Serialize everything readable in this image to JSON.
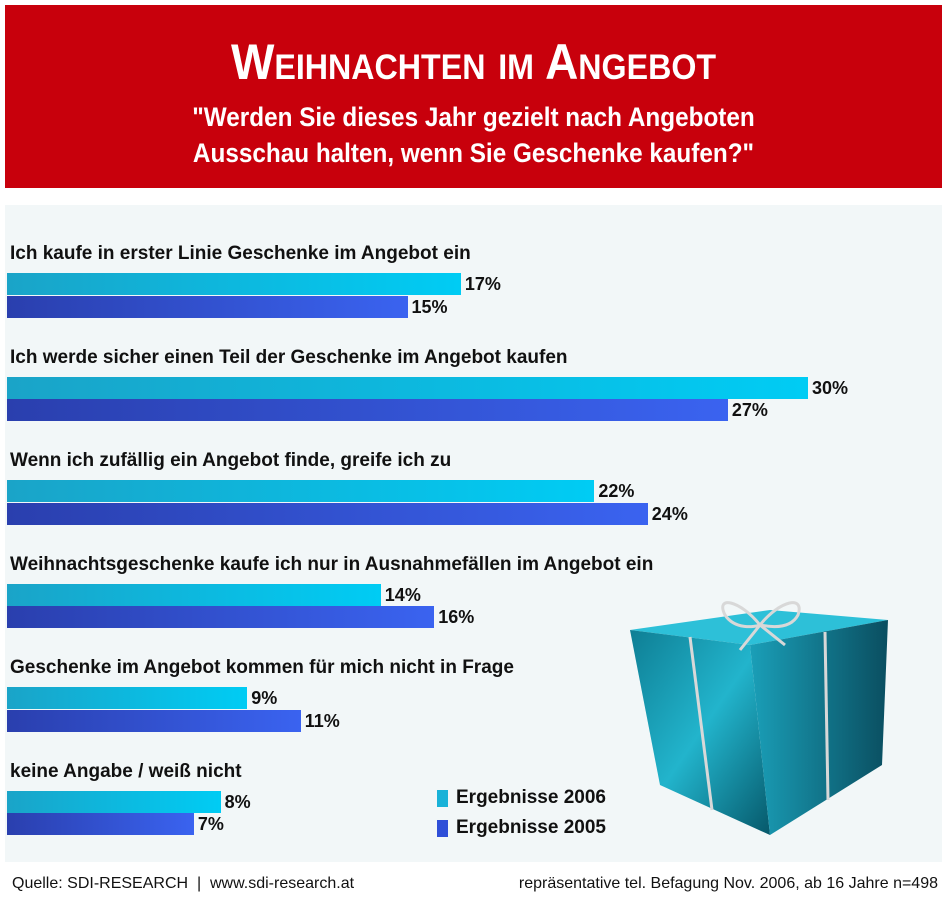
{
  "header": {
    "title": "Weihnachten im Angebot",
    "subtitle_line1": "\"Werden Sie dieses Jahr gezielt nach Angeboten",
    "subtitle_line2": "Ausschau halten, wenn Sie Geschenke kaufen?\""
  },
  "chart_data": {
    "type": "bar",
    "orientation": "horizontal",
    "title": "Weihnachten im Angebot",
    "categories": [
      "Ich kaufe in erster Linie Geschenke im Angebot ein",
      "Ich werde sicher einen Teil der Geschenke im Angebot kaufen",
      "Wenn ich zufällig ein Angebot finde, greife ich zu",
      "Weihnachtsgeschenke kaufe ich nur in Ausnahmefällen im Angebot ein",
      "Geschenke im Angebot kommen für mich nicht in Frage",
      "keine Angabe / weiß nicht"
    ],
    "series": [
      {
        "name": "Ergebnisse 2006",
        "values": [
          17,
          30,
          22,
          14,
          9,
          8
        ],
        "labels": [
          "17%",
          "30%",
          "22%",
          "14%",
          "9%",
          "8%"
        ],
        "color": "#00c4ee"
      },
      {
        "name": "Ergebnisse 2005",
        "values": [
          15,
          27,
          24,
          16,
          11,
          7
        ],
        "labels": [
          "15%",
          "27%",
          "24%",
          "16%",
          "11%",
          "7%"
        ],
        "color": "#2f4fd8"
      }
    ],
    "unit": "%",
    "legend_position": "bottom-center",
    "grid": false
  },
  "colors": {
    "header_bg": "#c8000c",
    "panel_bg": "#f2f7f8"
  },
  "footer": {
    "source": "Quelle: SDI-RESEARCH  |  www.sdi-research.at",
    "method": "repräsentative tel. Befagung Nov. 2006, ab 16 Jahre n=498"
  },
  "image": {
    "icon": "gift-box-icon"
  }
}
